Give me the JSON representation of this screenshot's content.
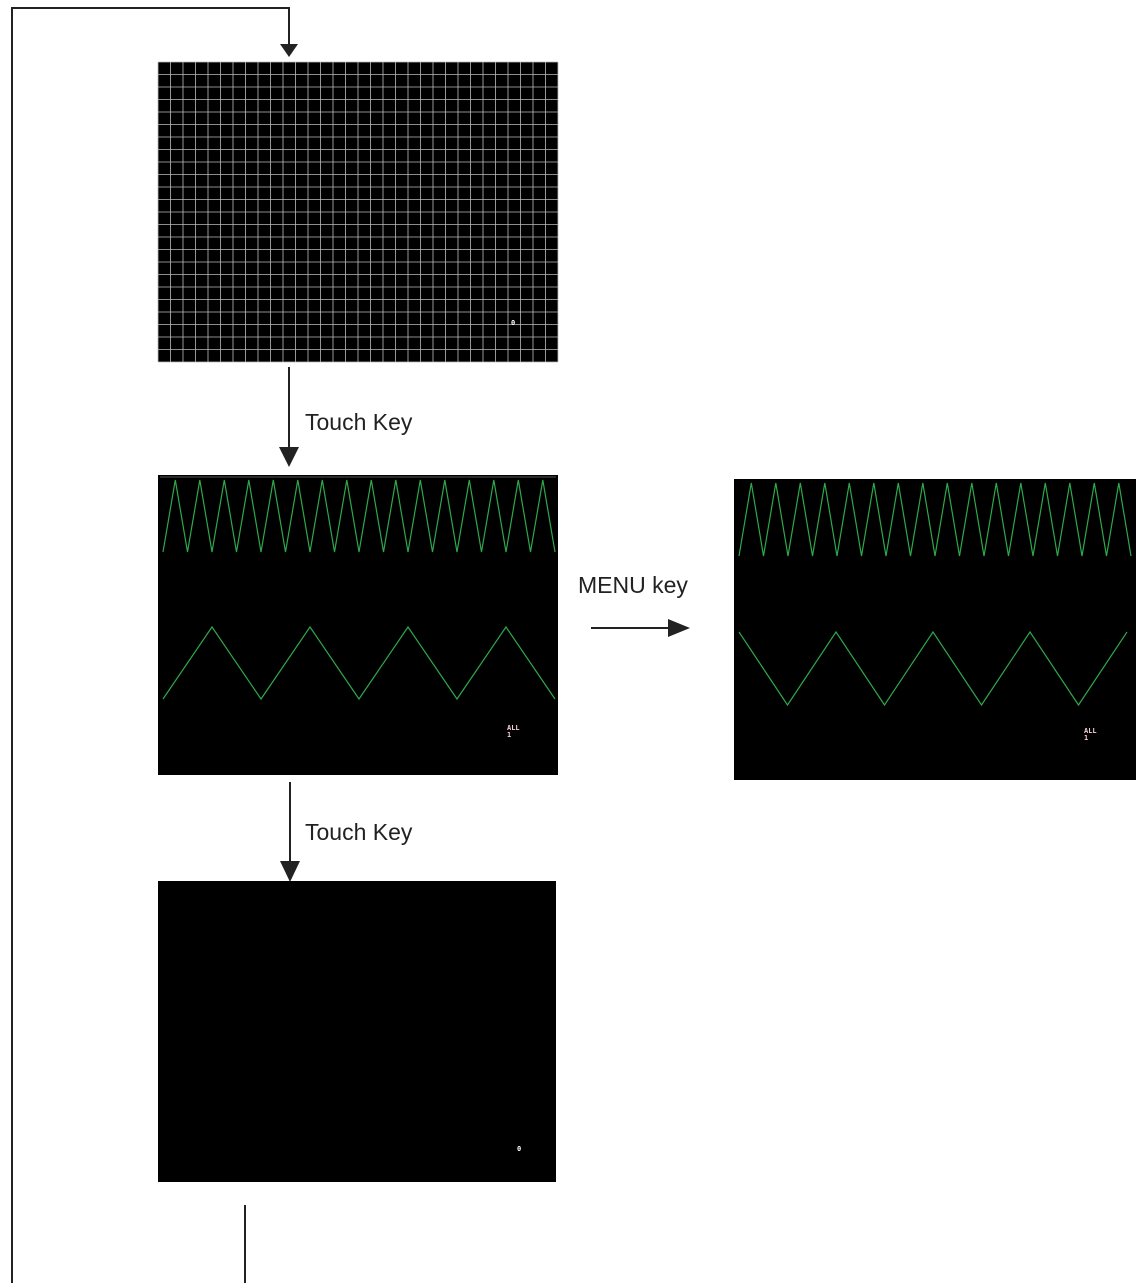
{
  "diagram": {
    "colors": {
      "line": "#222222",
      "screen_bg": "#000000",
      "grid": "#bdbdbd",
      "wave": "#2ea84a",
      "indicator_white": "#ffffff",
      "indicator_pink": "#f4cce0"
    },
    "labels": {
      "touch_key_1": "Touch Key",
      "touch_key_2": "Touch Key",
      "menu_key": "MENU key"
    },
    "screens": {
      "grid_test": {
        "indicator": "0"
      },
      "waveform": {
        "indicator_line1": "ALL",
        "indicator_line2": "1"
      },
      "waveform_menu": {
        "indicator_line1": "ALL",
        "indicator_line2": "1"
      },
      "blank": {
        "indicator": "0"
      }
    }
  }
}
